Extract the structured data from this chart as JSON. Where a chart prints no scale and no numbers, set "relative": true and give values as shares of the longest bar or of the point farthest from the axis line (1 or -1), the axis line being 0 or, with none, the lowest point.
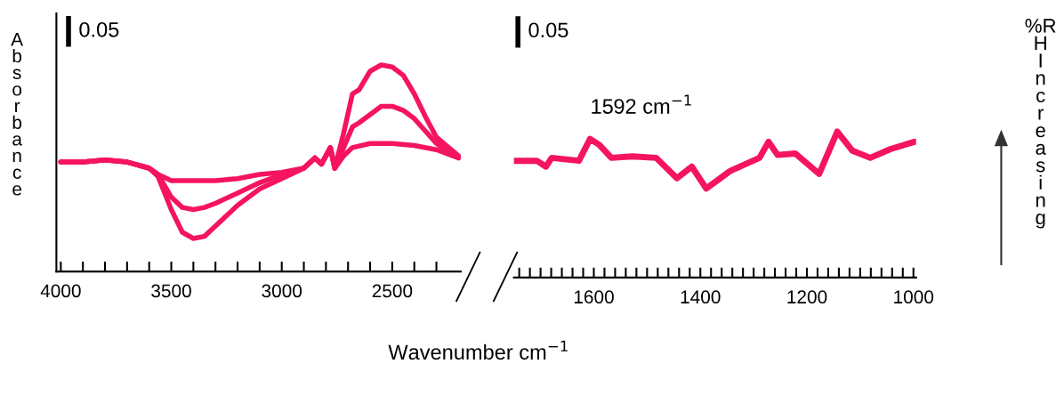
{
  "chart_data": [
    {
      "type": "line",
      "ylabel": "Absorbance",
      "xlabel": "Wavenumber cm$^{−1}$",
      "relative": true,
      "tick_labels": "x",
      "legend": false,
      "grid": false,
      "marker": "none",
      "line_style": "solid",
      "xlim": [
        4020,
        2190
      ],
      "xticks": [
        4000,
        {
          "value": 3900,
          "label": null
        },
        {
          "value": 3800,
          "label": null
        },
        {
          "value": 3700,
          "label": null
        },
        {
          "value": 3600,
          "label": null
        },
        3500,
        {
          "value": 3400,
          "label": null
        },
        {
          "value": 3300,
          "label": null
        },
        {
          "value": 3200,
          "label": null
        },
        {
          "value": 3100,
          "label": null
        },
        3000,
        {
          "value": 2900,
          "label": null
        },
        {
          "value": 2800,
          "label": null
        },
        {
          "value": 2700,
          "label": null
        },
        {
          "value": 2600,
          "label": null
        },
        2500,
        {
          "value": 2400,
          "label": null
        },
        {
          "value": 2300,
          "label": null
        }
      ],
      "annotations": [
        "0.05"
      ],
      "series": [
        {
          "color": "#f5145f",
          "x": [
            4000,
            3900,
            3800,
            3700,
            3600,
            3560,
            3500,
            3450,
            3400,
            3350,
            3300,
            3200,
            3100,
            3000,
            2900,
            2850,
            2820,
            2780,
            2760,
            2720,
            2680,
            2650,
            2600,
            2550,
            2500,
            2450,
            2400,
            2350,
            2300,
            2200
          ],
          "values": [
            0.53,
            0.53,
            0.54,
            0.53,
            0.5,
            0.46,
            0.3,
            0.19,
            0.16,
            0.17,
            0.22,
            0.32,
            0.4,
            0.45,
            0.5,
            0.55,
            0.52,
            0.6,
            0.5,
            0.67,
            0.86,
            0.88,
            0.97,
            1.0,
            0.99,
            0.95,
            0.86,
            0.75,
            0.65,
            0.56
          ]
        },
        {
          "color": "#f5145f",
          "x": [
            4000,
            3900,
            3800,
            3700,
            3600,
            3560,
            3500,
            3450,
            3400,
            3350,
            3300,
            3200,
            3100,
            3000,
            2900,
            2850,
            2820,
            2780,
            2760,
            2720,
            2680,
            2650,
            2600,
            2550,
            2500,
            2450,
            2400,
            2350,
            2300,
            2200
          ],
          "values": [
            0.53,
            0.53,
            0.54,
            0.53,
            0.5,
            0.47,
            0.36,
            0.31,
            0.3,
            0.31,
            0.33,
            0.38,
            0.43,
            0.47,
            0.5,
            0.55,
            0.52,
            0.6,
            0.5,
            0.6,
            0.7,
            0.72,
            0.76,
            0.8,
            0.8,
            0.78,
            0.74,
            0.68,
            0.62,
            0.55
          ]
        },
        {
          "color": "#f5145f",
          "x": [
            4000,
            3900,
            3800,
            3700,
            3600,
            3560,
            3500,
            3450,
            3400,
            3300,
            3200,
            3100,
            3000,
            2900,
            2850,
            2820,
            2780,
            2760,
            2720,
            2680,
            2600,
            2550,
            2500,
            2400,
            2300,
            2200
          ],
          "values": [
            0.53,
            0.53,
            0.54,
            0.53,
            0.5,
            0.47,
            0.44,
            0.44,
            0.44,
            0.44,
            0.45,
            0.47,
            0.48,
            0.5,
            0.55,
            0.52,
            0.6,
            0.5,
            0.56,
            0.6,
            0.62,
            0.62,
            0.62,
            0.61,
            0.59,
            0.55
          ]
        }
      ]
    },
    {
      "type": "line",
      "relative": true,
      "tick_labels": "x",
      "legend": false,
      "grid": false,
      "marker": "none",
      "line_style": "solid",
      "xlim": [
        1750,
        995
      ],
      "xticks": [
        {
          "value": 1740,
          "label": null
        },
        {
          "value": 1720,
          "label": null
        },
        {
          "value": 1700,
          "label": null
        },
        {
          "value": 1680,
          "label": null
        },
        {
          "value": 1660,
          "label": null
        },
        {
          "value": 1640,
          "label": null
        },
        {
          "value": 1620,
          "label": null
        },
        1600,
        {
          "value": 1580,
          "label": null
        },
        {
          "value": 1560,
          "label": null
        },
        {
          "value": 1540,
          "label": null
        },
        {
          "value": 1520,
          "label": null
        },
        {
          "value": 1500,
          "label": null
        },
        {
          "value": 1480,
          "label": null
        },
        {
          "value": 1460,
          "label": null
        },
        {
          "value": 1440,
          "label": null
        },
        {
          "value": 1420,
          "label": null
        },
        1400,
        {
          "value": 1380,
          "label": null
        },
        {
          "value": 1360,
          "label": null
        },
        {
          "value": 1340,
          "label": null
        },
        {
          "value": 1320,
          "label": null
        },
        {
          "value": 1300,
          "label": null
        },
        {
          "value": 1280,
          "label": null
        },
        {
          "value": 1260,
          "label": null
        },
        {
          "value": 1240,
          "label": null
        },
        {
          "value": 1220,
          "label": null
        },
        1200,
        {
          "value": 1180,
          "label": null
        },
        {
          "value": 1160,
          "label": null
        },
        {
          "value": 1140,
          "label": null
        },
        {
          "value": 1120,
          "label": null
        },
        {
          "value": 1100,
          "label": null
        },
        {
          "value": 1080,
          "label": null
        },
        {
          "value": 1060,
          "label": null
        },
        {
          "value": 1040,
          "label": null
        },
        {
          "value": 1020,
          "label": null
        },
        1000
      ],
      "annotations": [
        "0.05",
        "1592 cm$^{−1}$",
        "%RH Increasing"
      ],
      "series": [
        {
          "color": "#f5145f",
          "x": [
            1750,
            1707,
            1690,
            1679,
            1628,
            1607,
            1590,
            1567,
            1528,
            1483,
            1444,
            1416,
            1389,
            1344,
            1289,
            1272,
            1255,
            1222,
            1177,
            1143,
            1115,
            1081,
            1043,
            998
          ],
          "values": [
            0.8,
            0.8,
            0.76,
            0.82,
            0.8,
            0.95,
            0.91,
            0.82,
            0.83,
            0.82,
            0.68,
            0.76,
            0.61,
            0.73,
            0.82,
            0.93,
            0.84,
            0.85,
            0.71,
            1.0,
            0.87,
            0.82,
            0.88,
            0.93
          ]
        }
      ]
    }
  ]
}
